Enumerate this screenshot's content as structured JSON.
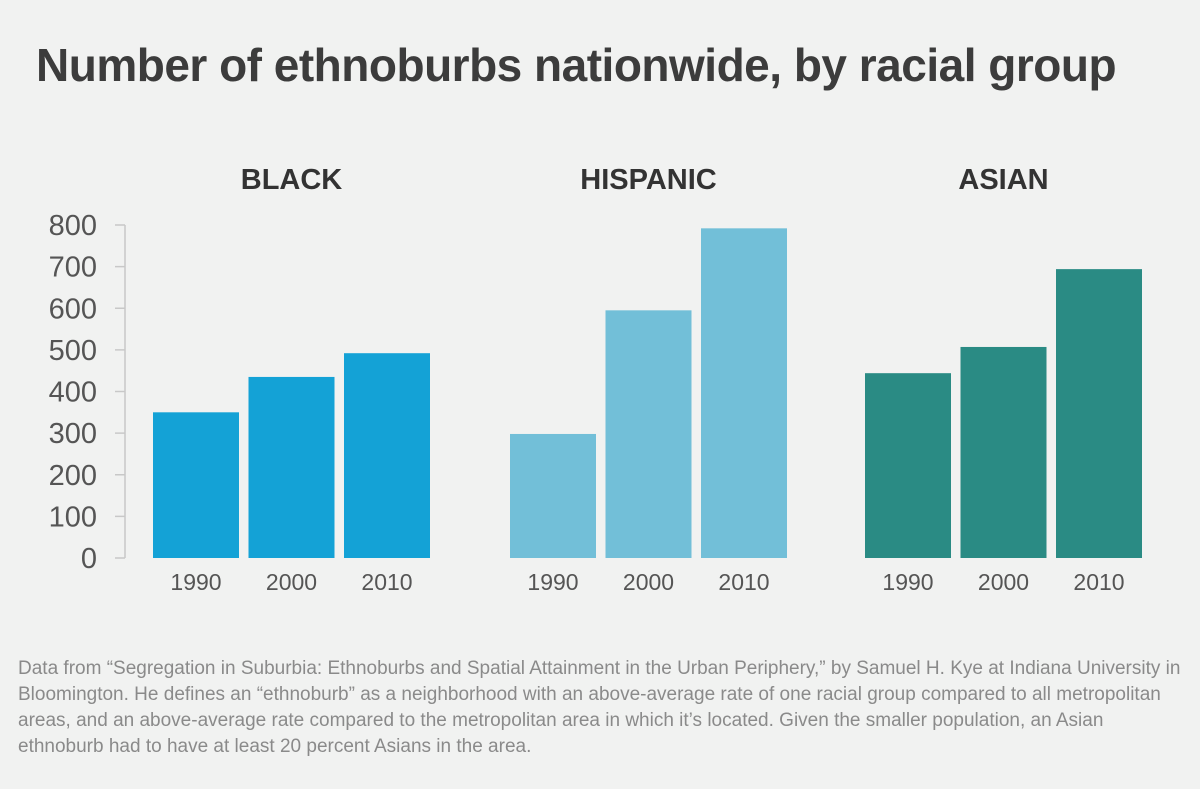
{
  "title": "Number of ethnoburbs nationwide, by racial group",
  "source": "Data from “Segregation in Suburbia: Ethnoburbs and Spatial Attainment in the Urban Periphery,” by Samuel H. Kye at Indiana University in Bloomington. He defines an “ethnoburb” as a neighborhood with an above-average rate of one racial group compared to all metropolitan areas, and an above-average rate compared to the metropolitan area in which it’s located. Given the smaller population, an Asian ethnoburb had to have at least 20 percent Asians in the area.",
  "chart_data": {
    "type": "bar",
    "ylim": [
      0,
      800
    ],
    "yticks": [
      "0",
      "100",
      "200",
      "300",
      "400",
      "500",
      "600",
      "700",
      "800"
    ],
    "grid": false,
    "panels": [
      {
        "name": "BLACK",
        "color": "#14a2d6",
        "categories": [
          "1990",
          "2000",
          "2010"
        ],
        "values": [
          350,
          435,
          492
        ]
      },
      {
        "name": "HISPANIC",
        "color": "#72bfd8",
        "categories": [
          "1990",
          "2000",
          "2010"
        ],
        "values": [
          298,
          595,
          792
        ]
      },
      {
        "name": "ASIAN",
        "color": "#2a8b84",
        "categories": [
          "1990",
          "2000",
          "2010"
        ],
        "values": [
          444,
          507,
          694
        ]
      }
    ]
  }
}
